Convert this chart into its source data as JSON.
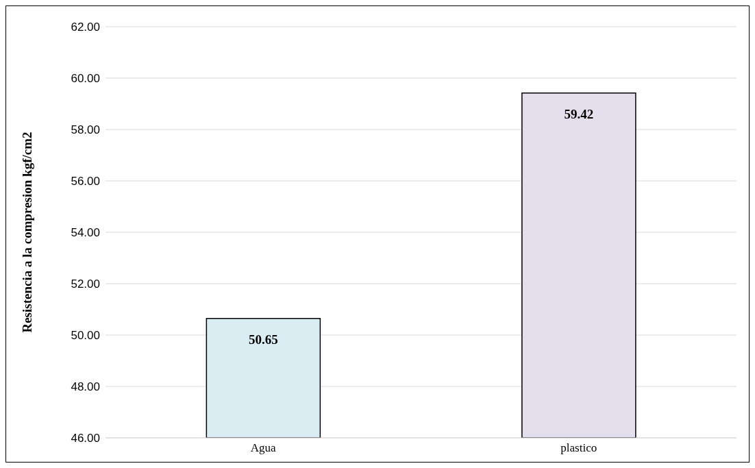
{
  "chart_data": {
    "type": "bar",
    "ylabel": "Resistencia a la compresion kgf/cm2",
    "categories": [
      "Agua",
      "plastico"
    ],
    "values": [
      50.65,
      59.42
    ],
    "colors": [
      "#daedf3",
      "#e4dfec"
    ],
    "ylim": [
      46,
      62
    ],
    "yticks": [
      {
        "value": 46,
        "label": "46.00"
      },
      {
        "value": 48,
        "label": "48.00"
      },
      {
        "value": 50,
        "label": "50.00"
      },
      {
        "value": 52,
        "label": "52.00"
      },
      {
        "value": 54,
        "label": "54.00"
      },
      {
        "value": 56,
        "label": "56.00"
      },
      {
        "value": 58,
        "label": "58.00"
      },
      {
        "value": 60,
        "label": "60.00"
      },
      {
        "value": 62,
        "label": "62.00"
      }
    ],
    "grid": "y",
    "data_labels": true,
    "legend": false
  }
}
